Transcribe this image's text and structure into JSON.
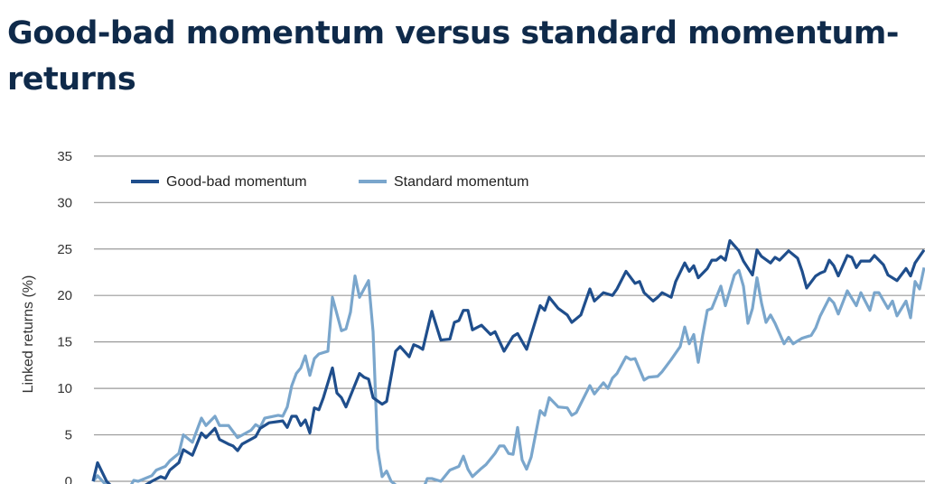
{
  "header": {
    "title": "Good-bad momentum versus standard momentum-returns"
  },
  "chart_data": {
    "type": "line",
    "title": "",
    "xlabel": "",
    "ylabel": "Linked returns (%)",
    "ylim": [
      0,
      35
    ],
    "yticks": [
      "0",
      "5",
      "10",
      "15",
      "20",
      "25",
      "30",
      "35"
    ],
    "grid": true,
    "legend_position": "top-left",
    "colors": {
      "Good-bad momentum": "#1f4e8c",
      "Standard momentum": "#7aa6cc"
    },
    "series": [
      {
        "name": "Good-bad momentum",
        "points": [
          [
            0,
            0
          ],
          [
            1,
            2.0
          ],
          [
            3,
            0
          ],
          [
            5,
            -1
          ],
          [
            8,
            -1.5
          ],
          [
            13,
            0
          ],
          [
            15,
            0.5
          ],
          [
            16,
            0.3
          ],
          [
            17,
            1.2
          ],
          [
            19,
            2
          ],
          [
            20,
            3.4
          ],
          [
            22,
            2.8
          ],
          [
            24,
            5.2
          ],
          [
            25,
            4.7
          ],
          [
            27,
            5.7
          ],
          [
            28,
            4.5
          ],
          [
            30,
            4
          ],
          [
            31,
            3.8
          ],
          [
            32,
            3.3
          ],
          [
            33,
            4
          ],
          [
            36,
            4.8
          ],
          [
            37,
            5.7
          ],
          [
            39,
            6.3
          ],
          [
            42,
            6.5
          ],
          [
            43,
            5.8
          ],
          [
            44,
            7
          ],
          [
            45,
            7
          ],
          [
            46,
            6
          ],
          [
            47,
            6.6
          ],
          [
            48,
            5.2
          ],
          [
            49,
            7.9
          ],
          [
            50,
            7.7
          ],
          [
            51,
            9
          ],
          [
            53,
            12.2
          ],
          [
            54,
            9.5
          ],
          [
            55,
            9
          ],
          [
            56,
            8
          ],
          [
            57,
            9.2
          ],
          [
            59,
            11.6
          ],
          [
            60,
            11.2
          ],
          [
            61,
            11
          ],
          [
            62,
            9
          ],
          [
            64,
            8.3
          ],
          [
            65,
            8.6
          ],
          [
            67,
            14
          ],
          [
            68,
            14.5
          ],
          [
            70,
            13.4
          ],
          [
            71,
            14.7
          ],
          [
            72,
            14.5
          ],
          [
            73,
            14.2
          ],
          [
            75,
            18.3
          ],
          [
            77,
            15.2
          ],
          [
            79,
            15.3
          ],
          [
            80,
            17.1
          ],
          [
            81,
            17.3
          ],
          [
            82,
            18.4
          ],
          [
            83,
            18.4
          ],
          [
            84,
            16.3
          ],
          [
            86,
            16.8
          ],
          [
            88,
            15.8
          ],
          [
            89,
            16.1
          ],
          [
            91,
            14
          ],
          [
            93,
            15.6
          ],
          [
            94,
            15.9
          ],
          [
            96,
            14.2
          ],
          [
            99,
            18.9
          ],
          [
            100,
            18.4
          ],
          [
            101,
            19.8
          ],
          [
            103,
            18.6
          ],
          [
            105,
            17.9
          ],
          [
            106,
            17.1
          ],
          [
            108,
            17.9
          ],
          [
            110,
            20.7
          ],
          [
            111,
            19.4
          ],
          [
            113,
            20.3
          ],
          [
            115,
            20
          ],
          [
            116,
            20.7
          ],
          [
            118,
            22.6
          ],
          [
            120,
            21.3
          ],
          [
            121,
            21.5
          ],
          [
            122,
            20.3
          ],
          [
            124,
            19.4
          ],
          [
            125,
            19.8
          ],
          [
            126,
            20.3
          ],
          [
            128,
            19.8
          ],
          [
            129,
            21.5
          ],
          [
            131,
            23.5
          ],
          [
            132,
            22.6
          ],
          [
            133,
            23.2
          ],
          [
            134,
            21.9
          ],
          [
            136,
            22.9
          ],
          [
            137,
            23.8
          ],
          [
            138,
            23.8
          ],
          [
            139,
            24.2
          ],
          [
            140,
            23.8
          ],
          [
            141,
            25.9
          ],
          [
            143,
            24.8
          ],
          [
            144,
            23.7
          ],
          [
            146,
            22.2
          ],
          [
            147,
            24.9
          ],
          [
            148,
            24.2
          ],
          [
            150,
            23.5
          ],
          [
            151,
            24.1
          ],
          [
            152,
            23.8
          ],
          [
            154,
            24.8
          ],
          [
            156,
            24
          ],
          [
            157,
            22.6
          ],
          [
            158,
            20.8
          ],
          [
            160,
            22.1
          ],
          [
            161,
            22.4
          ],
          [
            162,
            22.6
          ],
          [
            163,
            23.8
          ],
          [
            164,
            23.2
          ],
          [
            165,
            22.1
          ],
          [
            167,
            24.3
          ],
          [
            168,
            24.1
          ],
          [
            169,
            23
          ],
          [
            170,
            23.7
          ],
          [
            172,
            23.7
          ],
          [
            173,
            24.3
          ],
          [
            175,
            23.3
          ],
          [
            176,
            22.2
          ],
          [
            178,
            21.6
          ],
          [
            180,
            22.9
          ],
          [
            181,
            22.1
          ],
          [
            182,
            23.5
          ],
          [
            184,
            24.9
          ]
        ]
      },
      {
        "name": "Standard momentum",
        "points": [
          [
            0,
            0
          ],
          [
            1,
            0.6
          ],
          [
            4,
            -1
          ],
          [
            8,
            -0.8
          ],
          [
            9,
            0.1
          ],
          [
            10,
            0
          ],
          [
            13,
            0.6
          ],
          [
            14,
            1.2
          ],
          [
            16,
            1.6
          ],
          [
            17,
            2.2
          ],
          [
            19,
            3
          ],
          [
            20,
            5
          ],
          [
            22,
            4.2
          ],
          [
            24,
            6.8
          ],
          [
            25,
            6
          ],
          [
            27,
            7
          ],
          [
            28,
            6
          ],
          [
            30,
            6
          ],
          [
            32,
            4.7
          ],
          [
            35,
            5.5
          ],
          [
            36,
            6.1
          ],
          [
            37,
            5.8
          ],
          [
            38,
            6.8
          ],
          [
            41,
            7.1
          ],
          [
            42,
            7
          ],
          [
            43,
            8
          ],
          [
            44,
            10.3
          ],
          [
            45,
            11.6
          ],
          [
            46,
            12.2
          ],
          [
            47,
            13.5
          ],
          [
            48,
            11.4
          ],
          [
            49,
            13.2
          ],
          [
            50,
            13.7
          ],
          [
            52,
            14
          ],
          [
            53,
            19.8
          ],
          [
            55,
            16.2
          ],
          [
            56,
            16.4
          ],
          [
            57,
            18.2
          ],
          [
            58,
            22.1
          ],
          [
            59,
            19.8
          ],
          [
            61,
            21.6
          ],
          [
            62,
            16.1
          ],
          [
            63,
            3.5
          ],
          [
            64,
            0.5
          ],
          [
            65,
            1.1
          ],
          [
            66,
            0
          ],
          [
            69,
            -1.2
          ],
          [
            73,
            -1
          ],
          [
            74,
            0.3
          ],
          [
            75,
            0.3
          ],
          [
            77,
            0
          ],
          [
            79,
            1.2
          ],
          [
            81,
            1.6
          ],
          [
            82,
            2.7
          ],
          [
            83,
            1.3
          ],
          [
            84,
            0.5
          ],
          [
            86,
            1.4
          ],
          [
            87,
            1.8
          ],
          [
            89,
            3
          ],
          [
            90,
            3.8
          ],
          [
            91,
            3.8
          ],
          [
            92,
            3
          ],
          [
            93,
            2.9
          ],
          [
            94,
            5.8
          ],
          [
            95,
            2.3
          ],
          [
            96,
            1.3
          ],
          [
            97,
            2.6
          ],
          [
            99,
            7.6
          ],
          [
            100,
            7.1
          ],
          [
            101,
            9
          ],
          [
            103,
            8
          ],
          [
            105,
            7.9
          ],
          [
            106,
            7.1
          ],
          [
            107,
            7.4
          ],
          [
            110,
            10.3
          ],
          [
            111,
            9.4
          ],
          [
            113,
            10.6
          ],
          [
            114,
            10
          ],
          [
            115,
            11.1
          ],
          [
            116,
            11.6
          ],
          [
            118,
            13.4
          ],
          [
            119,
            13.1
          ],
          [
            120,
            13.2
          ],
          [
            122,
            10.9
          ],
          [
            123,
            11.2
          ],
          [
            125,
            11.3
          ],
          [
            126,
            11.8
          ],
          [
            128,
            13.1
          ],
          [
            130,
            14.5
          ],
          [
            131,
            16.6
          ],
          [
            132,
            14.8
          ],
          [
            133,
            15.8
          ],
          [
            134,
            12.8
          ],
          [
            135,
            15.8
          ],
          [
            136,
            18.4
          ],
          [
            137,
            18.6
          ],
          [
            139,
            21
          ],
          [
            140,
            18.9
          ],
          [
            142,
            22.2
          ],
          [
            143,
            22.7
          ],
          [
            144,
            21
          ],
          [
            145,
            17
          ],
          [
            146,
            18.6
          ],
          [
            147,
            21.9
          ],
          [
            148,
            19.2
          ],
          [
            149,
            17.1
          ],
          [
            150,
            17.9
          ],
          [
            151,
            17
          ],
          [
            153,
            14.8
          ],
          [
            154,
            15.5
          ],
          [
            155,
            14.8
          ],
          [
            157,
            15.4
          ],
          [
            159,
            15.7
          ],
          [
            160,
            16.5
          ],
          [
            161,
            17.8
          ],
          [
            163,
            19.7
          ],
          [
            164,
            19.2
          ],
          [
            165,
            18
          ],
          [
            167,
            20.5
          ],
          [
            169,
            18.9
          ],
          [
            170,
            20.3
          ],
          [
            172,
            18.4
          ],
          [
            173,
            20.3
          ],
          [
            174,
            20.3
          ],
          [
            176,
            18.6
          ],
          [
            177,
            19.4
          ],
          [
            178,
            17.8
          ],
          [
            180,
            19.4
          ],
          [
            181,
            17.6
          ],
          [
            182,
            21.5
          ],
          [
            183,
            20.7
          ],
          [
            184,
            23
          ]
        ]
      }
    ]
  }
}
